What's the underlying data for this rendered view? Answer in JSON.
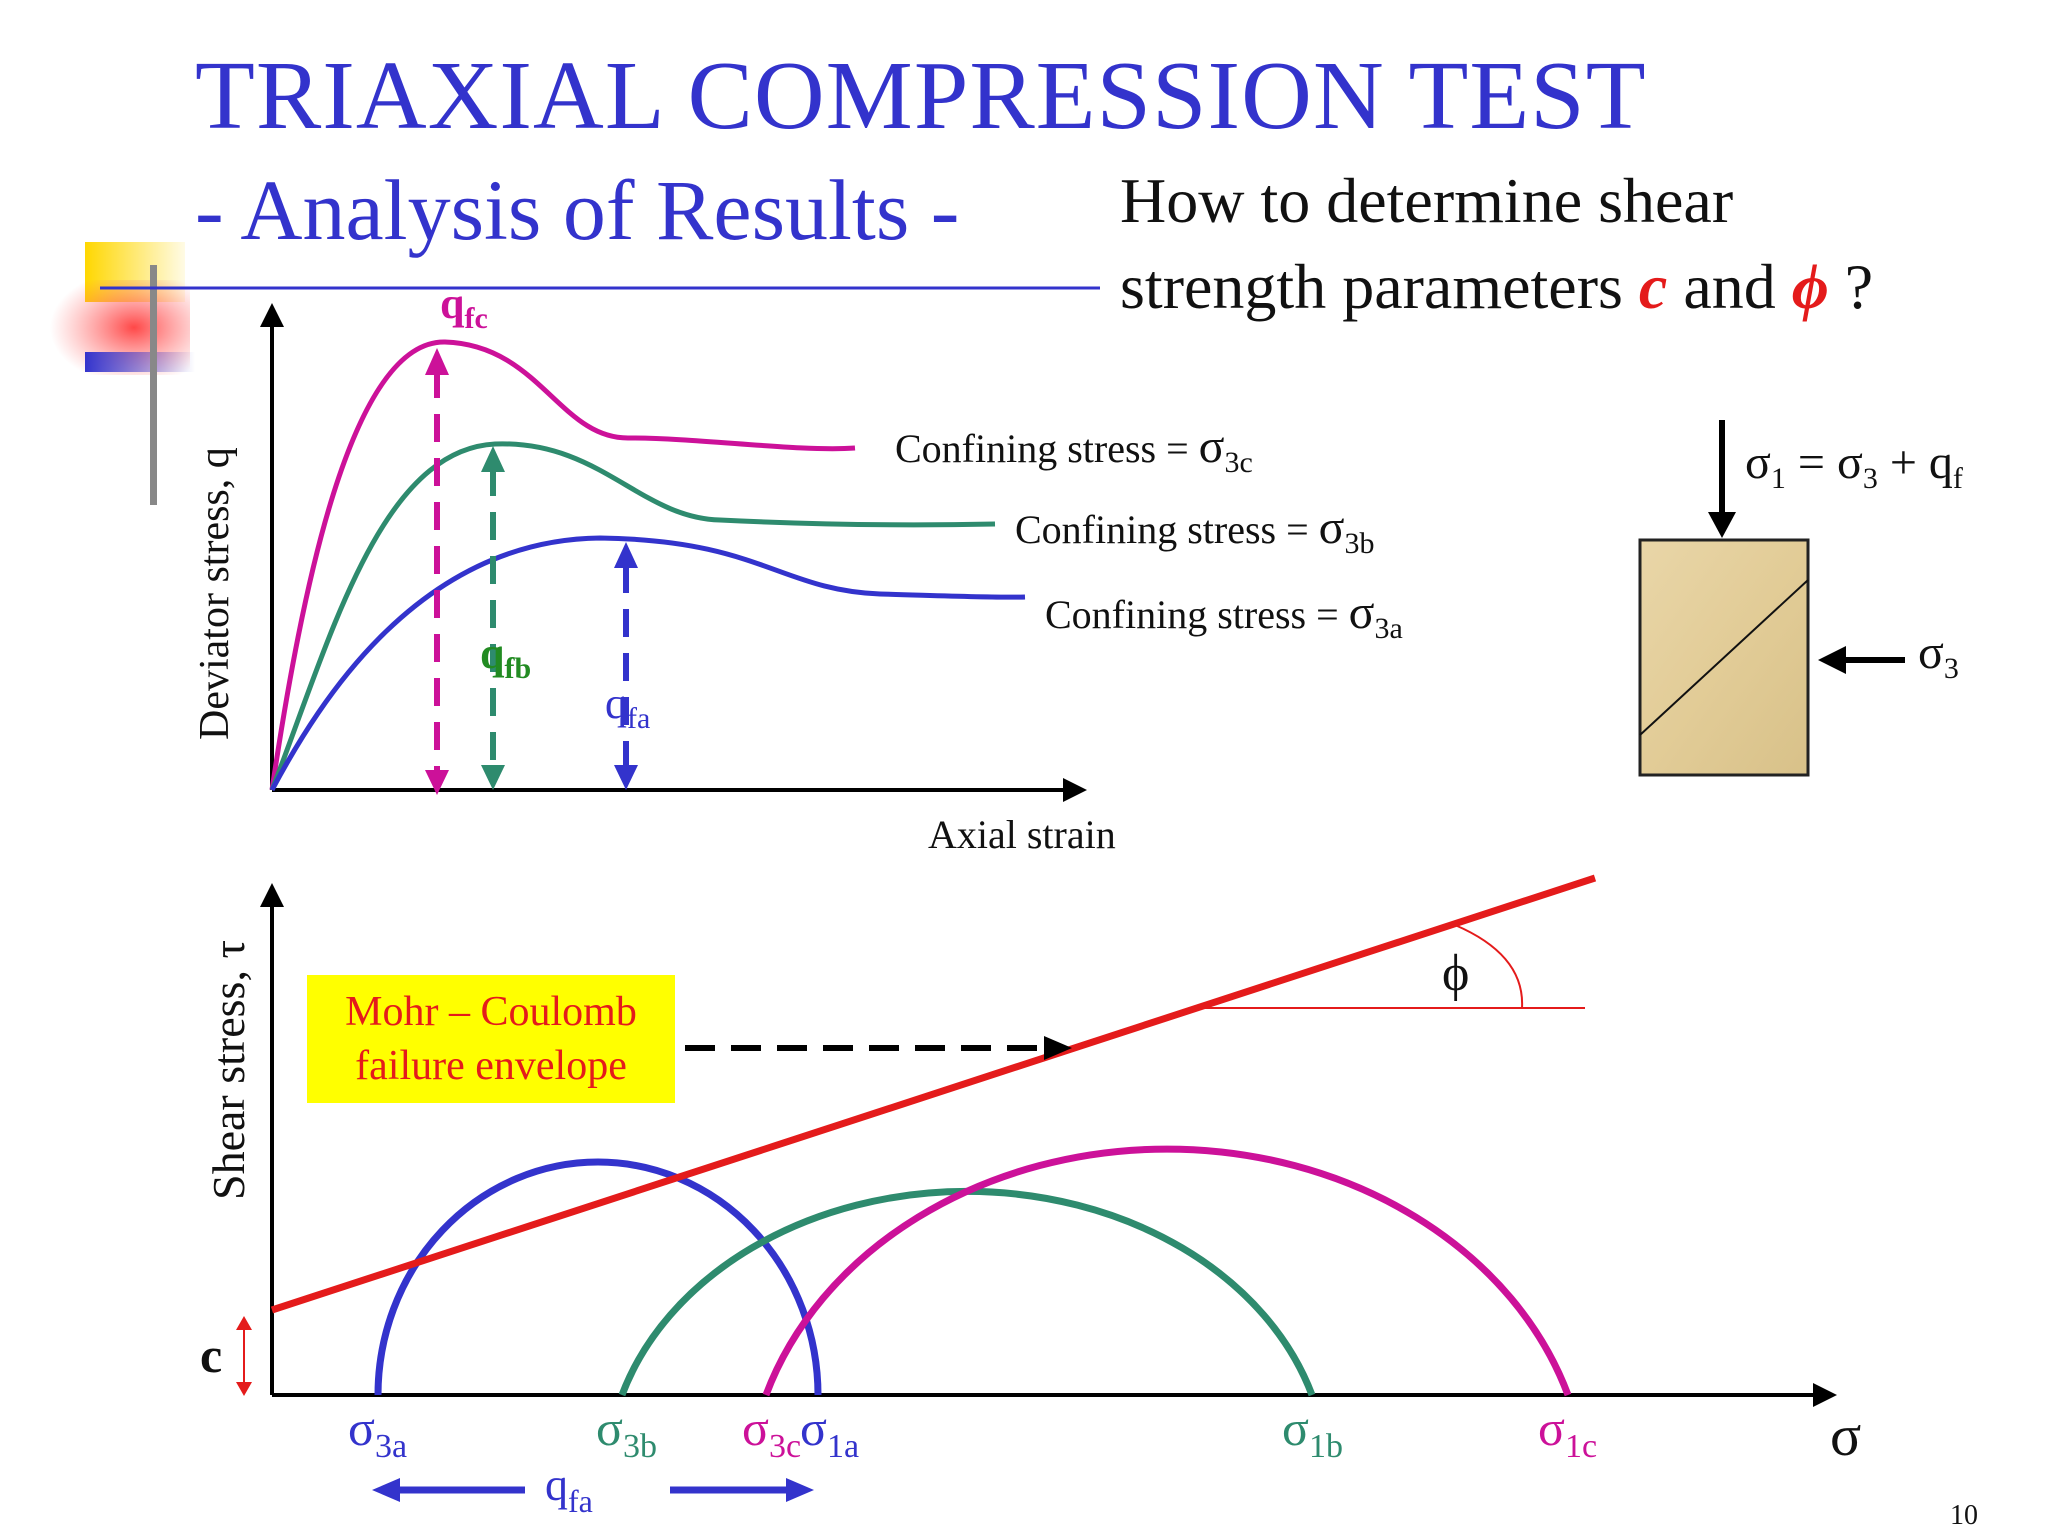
{
  "slide": {
    "title_line1": "TRIAXIAL COMPRESSION TEST",
    "title_line2": "- Analysis of Results -",
    "question_line1": "How to determine shear",
    "question_line2_prefix": "strength parameters ",
    "question_c": "c",
    "question_and": " and ",
    "question_phi": "ϕ",
    "question_end": " ?",
    "page_number": "10"
  },
  "stress_strain_plot": {
    "y_axis_label": "Deviator stress, q",
    "x_axis_label": "Axial strain",
    "curves": [
      {
        "id": "c",
        "label": "Confining stress = ",
        "sigma": "σ",
        "sub": "3c",
        "peak_label": "q",
        "peak_sub": "fc",
        "color": "#cc1199"
      },
      {
        "id": "b",
        "label": "Confining stress = ",
        "sigma": "σ",
        "sub": "3b",
        "peak_label": "q",
        "peak_sub": "fb",
        "color": "#2e8b6e"
      },
      {
        "id": "a",
        "label": "Confining stress = ",
        "sigma": "σ",
        "sub": "3a",
        "peak_label": "q",
        "peak_sub": "fa",
        "color": "#3333cc"
      }
    ]
  },
  "specimen": {
    "sigma1_text": "σ",
    "sigma1_sub": "1",
    "eq": " = σ",
    "eq_sub": "3",
    "plus": " + q",
    "plus_sub": "f",
    "sigma3_text": "σ",
    "sigma3_sub": "3"
  },
  "mohr_plot": {
    "y_axis_label": "Shear stress, τ",
    "x_axis_label": "σ",
    "envelope_label_line1": "Mohr – Coulomb",
    "envelope_label_line2": "failure envelope",
    "cohesion_label": "c",
    "friction_angle_label": "ϕ",
    "qfa_label": "q",
    "qfa_sub": "fa",
    "ticks": [
      {
        "t": "σ",
        "s": "3a",
        "color": "#3333cc"
      },
      {
        "t": "σ",
        "s": "3b",
        "color": "#2e8b6e"
      },
      {
        "t": "σ",
        "s": "3c",
        "color": "#cc1199"
      },
      {
        "t": "σ",
        "s": "1a",
        "color": "#3333cc"
      },
      {
        "t": "σ",
        "s": "1b",
        "color": "#2e8b6e"
      },
      {
        "t": "σ",
        "s": "1c",
        "color": "#cc1199"
      }
    ]
  },
  "colors": {
    "title": "#3333cc",
    "envelope": "#e41b1b",
    "circle_a": "#3333cc",
    "circle_b": "#2e8b6e",
    "circle_c": "#cc1199",
    "callout_box": "#ffff00"
  }
}
